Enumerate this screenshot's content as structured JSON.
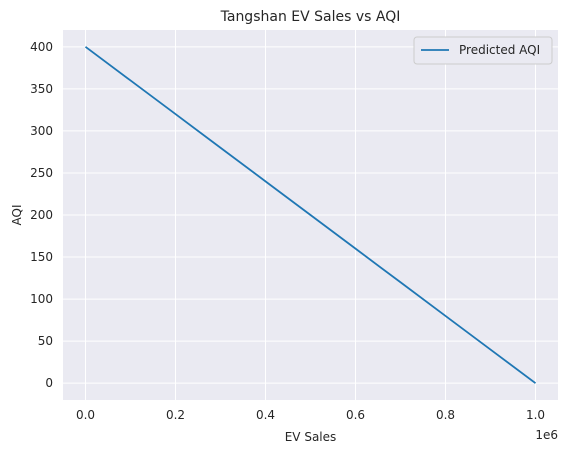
{
  "chart_data": {
    "type": "line",
    "title": "Tangshan EV Sales vs AQI",
    "xlabel": "EV Sales",
    "ylabel": "AQI",
    "x_offset_label": "1e6",
    "xlim": [
      -50000,
      1050000
    ],
    "ylim": [
      -20,
      420
    ],
    "x_ticks": [
      0,
      200000,
      400000,
      600000,
      800000,
      1000000
    ],
    "x_tick_labels": [
      "0.0",
      "0.2",
      "0.4",
      "0.6",
      "0.8",
      "1.0"
    ],
    "y_ticks": [
      0,
      50,
      100,
      150,
      200,
      250,
      300,
      350,
      400
    ],
    "y_tick_labels": [
      "0",
      "50",
      "100",
      "150",
      "200",
      "250",
      "300",
      "350",
      "400"
    ],
    "grid": true,
    "legend_position": "top-right",
    "series": [
      {
        "name": "Predicted AQI",
        "color": "#1f77b4",
        "x": [
          0,
          100000,
          200000,
          300000,
          400000,
          500000,
          600000,
          700000,
          800000,
          900000,
          1000000
        ],
        "y": [
          400,
          360,
          320,
          280,
          240,
          200,
          160,
          120,
          80,
          40,
          0
        ]
      }
    ]
  }
}
